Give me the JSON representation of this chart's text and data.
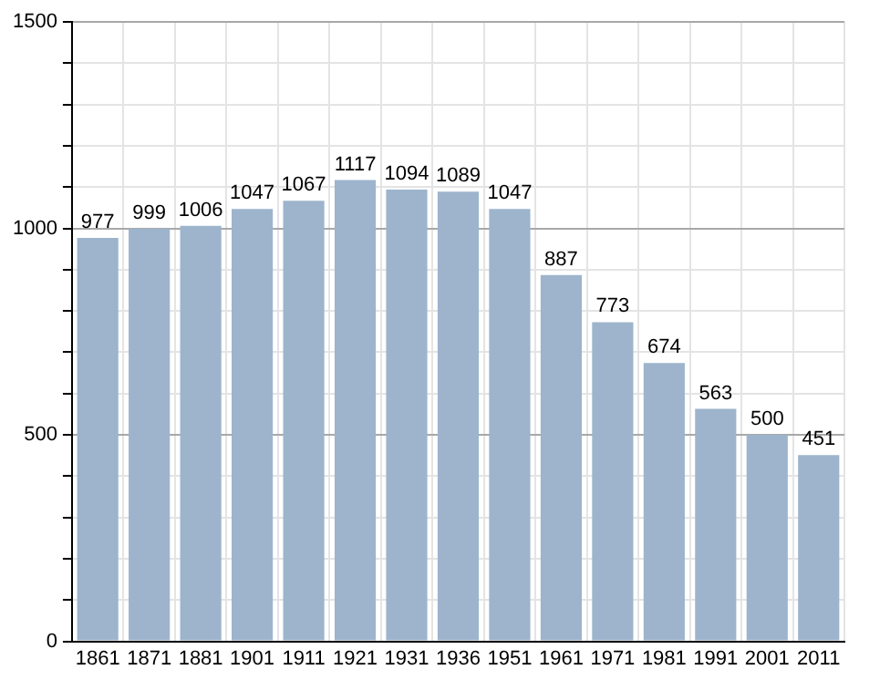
{
  "chart_data": {
    "type": "bar",
    "categories": [
      "1861",
      "1871",
      "1881",
      "1901",
      "1911",
      "1921",
      "1931",
      "1936",
      "1951",
      "1961",
      "1971",
      "1981",
      "1991",
      "2001",
      "2011"
    ],
    "values": [
      977,
      999,
      1006,
      1047,
      1067,
      1117,
      1094,
      1089,
      1047,
      887,
      773,
      674,
      563,
      500,
      451
    ],
    "color": "#9db4cc",
    "ylim": [
      0,
      1500
    ],
    "yticks": [
      0,
      {
        "value": 100,
        "label": null
      },
      {
        "value": 200,
        "label": null
      },
      {
        "value": 300,
        "label": null
      },
      {
        "value": 400,
        "label": null
      },
      500,
      {
        "value": 600,
        "label": null
      },
      {
        "value": 700,
        "label": null
      },
      {
        "value": 800,
        "label": null
      },
      {
        "value": 900,
        "label": null
      },
      1000,
      {
        "value": 1100,
        "label": null
      },
      {
        "value": 1200,
        "label": null
      },
      {
        "value": 1300,
        "label": null
      },
      {
        "value": 1400,
        "label": null
      },
      1500
    ],
    "grid": true,
    "data_labels": true
  }
}
